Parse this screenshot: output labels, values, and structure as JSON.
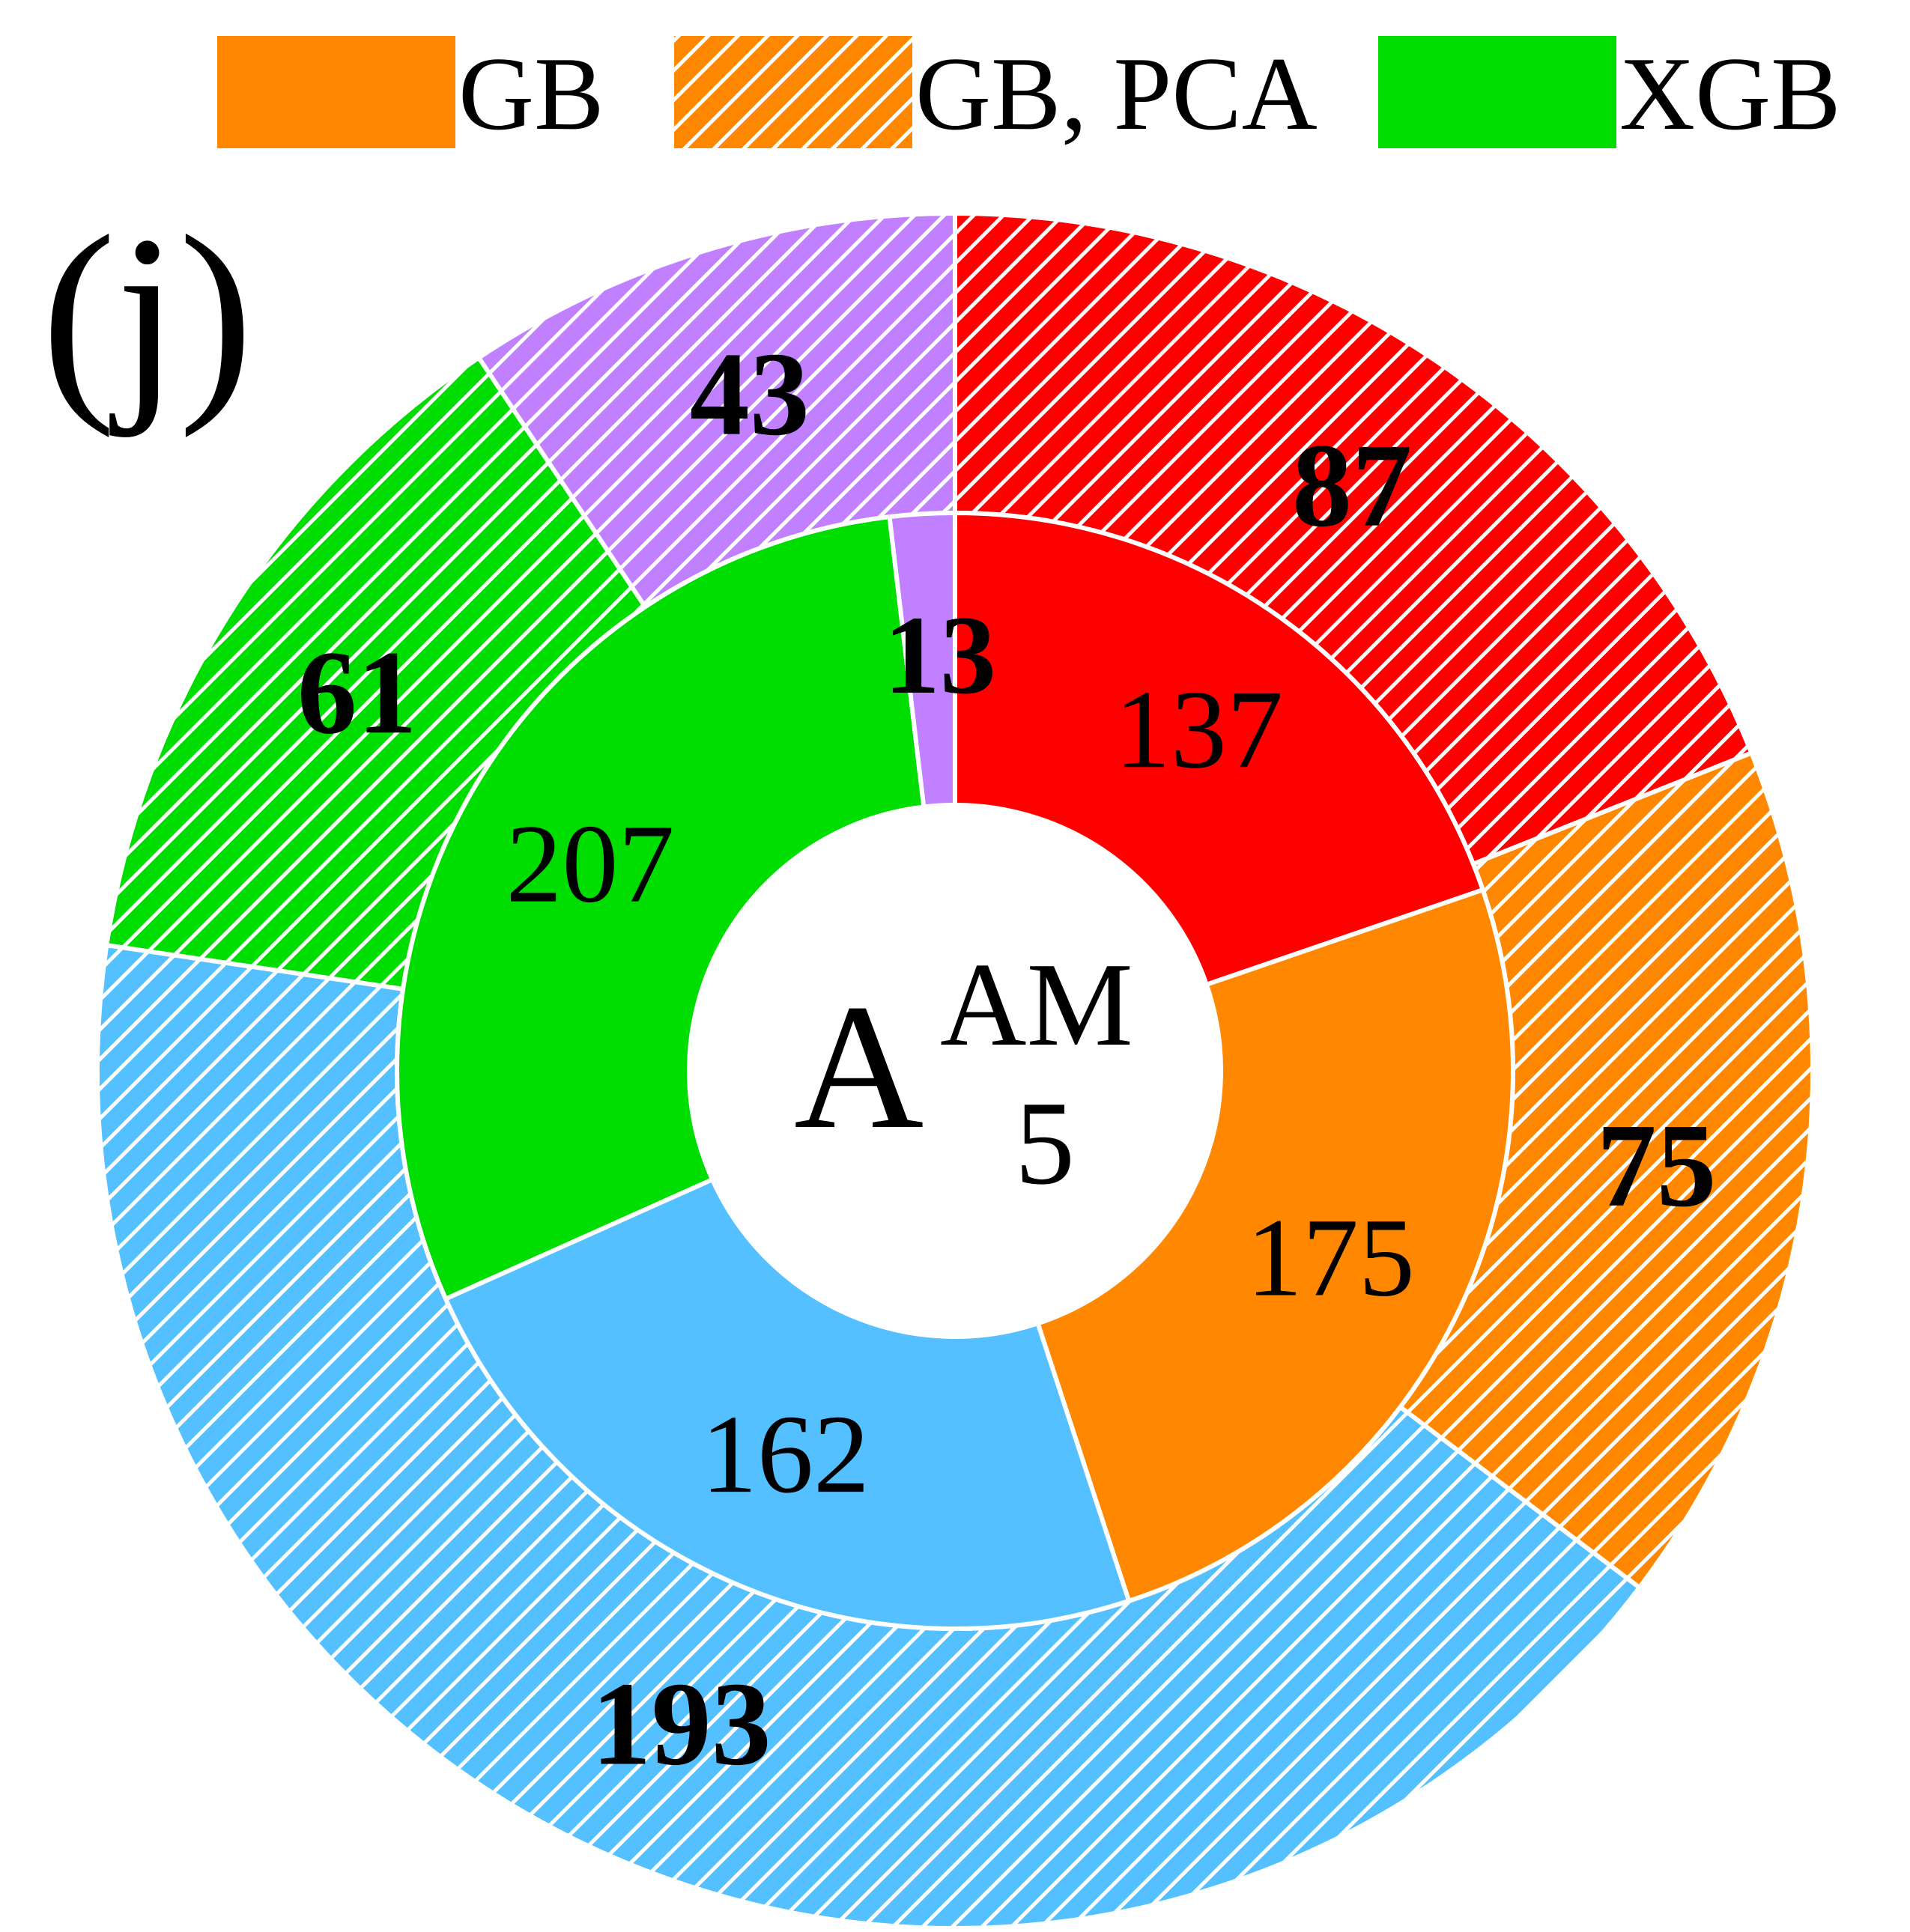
{
  "chart_data": {
    "type": "pie",
    "subtype": "nested-donut",
    "panel_label": "(j)",
    "center_label": {
      "main": "A",
      "superscript": "AM",
      "subscript": "5"
    },
    "legend": {
      "position": "top",
      "items": [
        {
          "label": "GB",
          "color": "#ff8800",
          "hatched": false
        },
        {
          "label": "GB, PCA",
          "color": "#ff8800",
          "hatched": true
        },
        {
          "label": "XGB",
          "color": "#00dd00",
          "hatched": false
        }
      ]
    },
    "inner_ring": {
      "hatched": false,
      "bold_labels": false,
      "slices": [
        {
          "value": 137,
          "label": "137",
          "color": "#ff0000"
        },
        {
          "value": 175,
          "label": "175",
          "color": "#ff8800"
        },
        {
          "value": 162,
          "label": "162",
          "color": "#55c0ff"
        },
        {
          "value": 207,
          "label": "207",
          "color": "#00dd00"
        },
        {
          "value": 13,
          "label": "13",
          "color": "#c080ff"
        }
      ]
    },
    "outer_ring": {
      "hatched": true,
      "bold_labels": true,
      "slices": [
        {
          "value": 87,
          "label": "87",
          "color": "#ff0000"
        },
        {
          "value": 75,
          "label": "75",
          "color": "#ff8800"
        },
        {
          "value": 193,
          "label": "193",
          "color": "#55c0ff"
        },
        {
          "value": 61,
          "label": "61",
          "color": "#00dd00"
        },
        {
          "value": 43,
          "label": "43",
          "color": "#c080ff"
        }
      ]
    }
  }
}
